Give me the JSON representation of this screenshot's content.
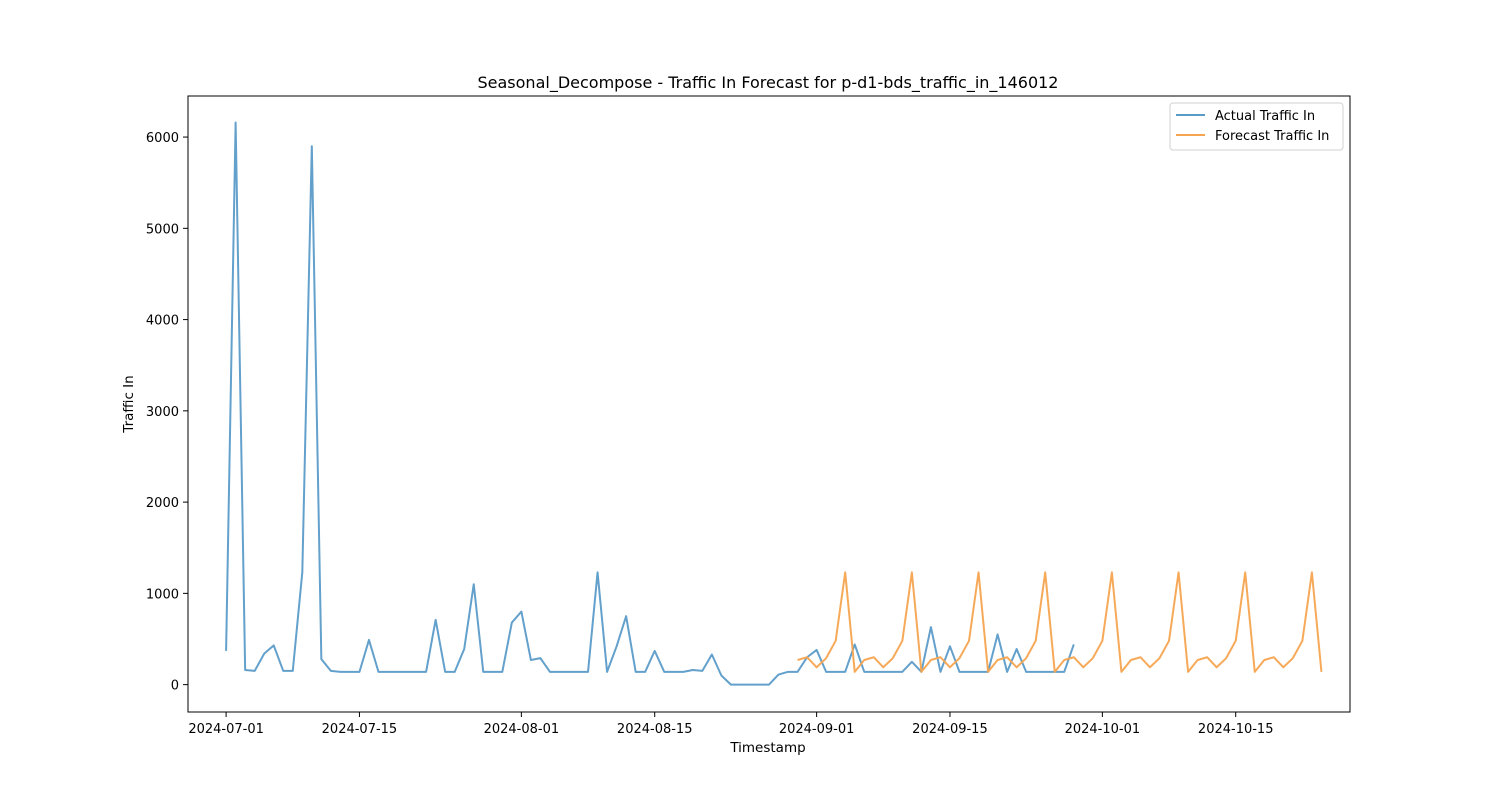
{
  "chart_data": {
    "type": "line",
    "title": "Seasonal_Decompose - Traffic In Forecast for p-d1-bds_traffic_in_146012",
    "xlabel": "Timestamp",
    "ylabel": "Traffic In",
    "xlim": [
      "2023-06-25",
      "2024-10-27"
    ],
    "ylim": [
      -300,
      6450
    ],
    "x_ticks": [
      "2024-07-01",
      "2024-07-15",
      "2024-08-01",
      "2024-08-15",
      "2024-09-01",
      "2024-09-15",
      "2024-10-01",
      "2024-10-15"
    ],
    "y_ticks": [
      0,
      1000,
      2000,
      3000,
      4000,
      5000,
      6000
    ],
    "grid": false,
    "legend": "top-right",
    "series": [
      {
        "name": "Actual Traffic In",
        "color": "#5b9bc8",
        "start": "2024-07-01",
        "values": [
          370,
          6160,
          160,
          150,
          340,
          430,
          150,
          150,
          1230,
          5900,
          280,
          150,
          140,
          140,
          140,
          490,
          140,
          140,
          140,
          140,
          140,
          140,
          710,
          140,
          140,
          390,
          1100,
          140,
          140,
          140,
          680,
          800,
          270,
          290,
          140,
          140,
          140,
          140,
          140,
          1230,
          140,
          420,
          750,
          140,
          140,
          370,
          140,
          140,
          140,
          160,
          150,
          330,
          100,
          0,
          0,
          0,
          0,
          0,
          110,
          140,
          140,
          300,
          380,
          140,
          140,
          140,
          440,
          140,
          140,
          140,
          140,
          140,
          250,
          140,
          630,
          140,
          420,
          140,
          140,
          140,
          140,
          550,
          140,
          390,
          140,
          140,
          140,
          140,
          140,
          440
        ]
      },
      {
        "name": "Forecast Traffic In",
        "color": "#f5a550",
        "start": "2024-08-30",
        "values": [
          270,
          300,
          190,
          290,
          480,
          1230,
          140,
          270,
          300,
          190,
          290,
          480,
          1230,
          140,
          270,
          300,
          190,
          290,
          480,
          1230,
          140,
          270,
          300,
          190,
          290,
          480,
          1230,
          140,
          270,
          300,
          190,
          290,
          480,
          1230,
          140,
          270,
          300,
          190,
          290,
          480,
          1230,
          140,
          270,
          300,
          190,
          290,
          480,
          1230,
          140,
          270,
          300,
          190,
          290,
          480,
          1230,
          140
        ]
      }
    ]
  }
}
